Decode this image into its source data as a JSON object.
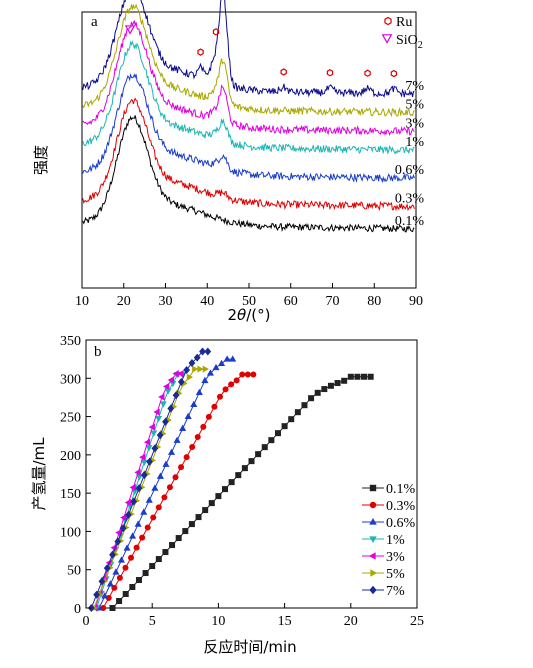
{
  "chart_data": [
    {
      "type": "line",
      "panel_label": "a",
      "xlabel_prefix": "2",
      "xlabel_theta": "θ",
      "xlabel_suffix": "/(°)",
      "ylabel": "强度",
      "xlim": [
        10,
        90
      ],
      "xticks": [
        10,
        20,
        30,
        40,
        50,
        60,
        70,
        80,
        90
      ],
      "y_ticks_shown": false,
      "grid": false,
      "legend_position": "top-right",
      "legend": [
        {
          "label": "Ru",
          "marker": "hexagon-open",
          "color": "#e00000"
        },
        {
          "label": "SiO",
          "subscript": "2",
          "marker": "triangle-down-open",
          "color": "#e000e0"
        }
      ],
      "series": [
        {
          "name": "0.1%",
          "color": "#000000",
          "baseline": 0.95,
          "peak22": 2.5,
          "peak44": 0,
          "noise": 0.18
        },
        {
          "name": "0.3%",
          "color": "#e00000",
          "baseline": 1.55,
          "peak22": 2.35,
          "peak44": 0.1,
          "noise": 0.2
        },
        {
          "name": "0.6%",
          "color": "#1a3dcc",
          "baseline": 2.3,
          "peak22": 2.3,
          "peak44": 0.3,
          "noise": 0.2
        },
        {
          "name": "1%",
          "color": "#1fb5b5",
          "baseline": 3.05,
          "peak22": 2.35,
          "peak44": 0.45,
          "noise": 0.2
        },
        {
          "name": "3%",
          "color": "#e000e0",
          "baseline": 3.55,
          "peak22": 2.4,
          "peak44": 0.75,
          "noise": 0.2
        },
        {
          "name": "5%",
          "color": "#a8a800",
          "baseline": 4.05,
          "peak22": 2.35,
          "peak44": 0.95,
          "noise": 0.2
        },
        {
          "name": "7%",
          "color": "#0a0a8c",
          "baseline": 4.55,
          "peak22": 2.35,
          "peak44": 2.0,
          "noise": 0.2
        }
      ],
      "markers": [
        {
          "type": "SiO2",
          "x": 21.5
        },
        {
          "type": "Ru",
          "x": 38.4
        },
        {
          "type": "Ru",
          "x": 42.1
        },
        {
          "type": "Ru",
          "x": 44.0
        },
        {
          "type": "Ru",
          "x": 58.3
        },
        {
          "type": "Ru",
          "x": 69.4
        },
        {
          "type": "Ru",
          "x": 78.4
        },
        {
          "type": "Ru",
          "x": 84.7
        }
      ]
    },
    {
      "type": "line",
      "panel_label": "b",
      "xlabel": "反应时间/min",
      "ylabel": "产氢量/mL",
      "xlim": [
        0,
        25
      ],
      "ylim": [
        0,
        350
      ],
      "xticks": [
        0,
        5,
        10,
        15,
        20,
        25
      ],
      "yticks": [
        0,
        50,
        100,
        150,
        200,
        250,
        300,
        350
      ],
      "grid": false,
      "legend_position": "bottom-right",
      "series": [
        {
          "name": "0.1%",
          "color": "#222222",
          "marker": "square",
          "t_start": 2.0,
          "t_end": 21.5,
          "v_max": 302,
          "step": 0.5
        },
        {
          "name": "0.3%",
          "color": "#e00000",
          "marker": "circle",
          "t_start": 1.3,
          "t_end": 12.8,
          "v_max": 305,
          "step": 0.42
        },
        {
          "name": "0.6%",
          "color": "#1a3dcc",
          "marker": "triangle-up",
          "t_start": 1.0,
          "t_end": 11.3,
          "v_max": 325,
          "step": 0.42
        },
        {
          "name": "1%",
          "color": "#1fb5b5",
          "marker": "triangle-down",
          "t_start": 0.8,
          "t_end": 7.6,
          "v_max": 305,
          "step": 0.36
        },
        {
          "name": "3%",
          "color": "#e000e0",
          "marker": "triangle-left",
          "t_start": 0.7,
          "t_end": 7.3,
          "v_max": 306,
          "step": 0.36
        },
        {
          "name": "5%",
          "color": "#a8a800",
          "marker": "triangle-right",
          "t_start": 0.6,
          "t_end": 9.0,
          "v_max": 312,
          "step": 0.4
        },
        {
          "name": "7%",
          "color": "#1a2a99",
          "marker": "diamond",
          "t_start": 0.4,
          "t_end": 9.5,
          "v_max": 335,
          "step": 0.4
        }
      ]
    }
  ]
}
